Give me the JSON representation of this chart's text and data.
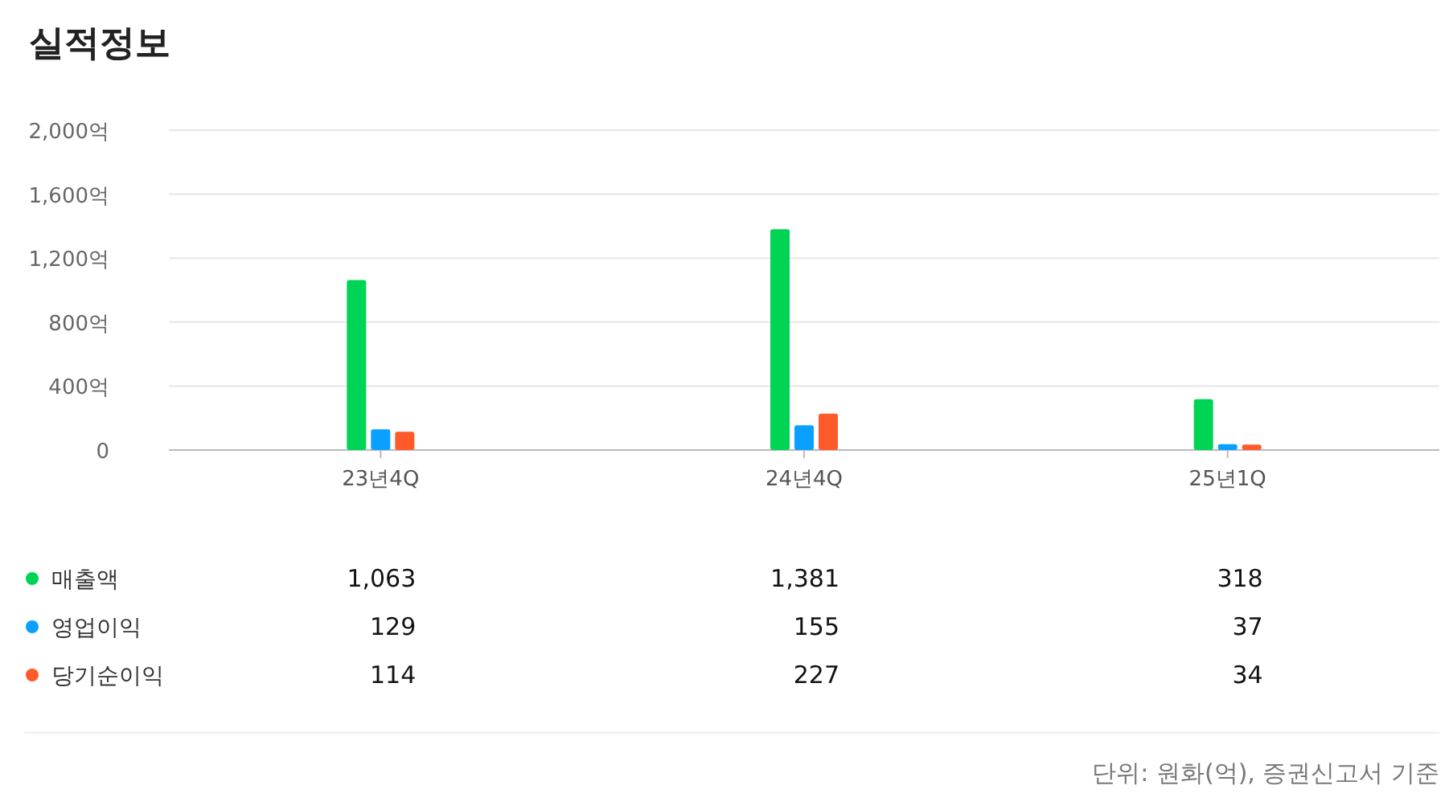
{
  "chart_data": {
    "type": "bar",
    "title": "실적정보",
    "categories": [
      "23년4Q",
      "24년4Q",
      "25년1Q"
    ],
    "series": [
      {
        "name": "매출액",
        "color": "#00d455",
        "values": [
          1063,
          1381,
          318
        ],
        "value_labels": [
          "1,063",
          "1,381",
          "318"
        ]
      },
      {
        "name": "영업이익",
        "color": "#0aa0ff",
        "values": [
          129,
          155,
          37
        ],
        "value_labels": [
          "129",
          "155",
          "37"
        ]
      },
      {
        "name": "당기순이익",
        "color": "#ff5a2a",
        "values": [
          114,
          227,
          34
        ],
        "value_labels": [
          "114",
          "227",
          "34"
        ]
      }
    ],
    "ylim": [
      0,
      2000
    ],
    "yticks": [
      0,
      {
        "value": 400,
        "label": "400억"
      },
      {
        "value": 800,
        "label": "800억"
      },
      {
        "value": 1200,
        "label": "1,200억"
      },
      {
        "value": 1600,
        "label": "1,600억"
      },
      {
        "value": 2000,
        "label": "2,000억"
      }
    ],
    "grid": "y",
    "legend": "bottom",
    "annotations": [
      "단위: 원화(억), 증권신고서 기준"
    ]
  }
}
